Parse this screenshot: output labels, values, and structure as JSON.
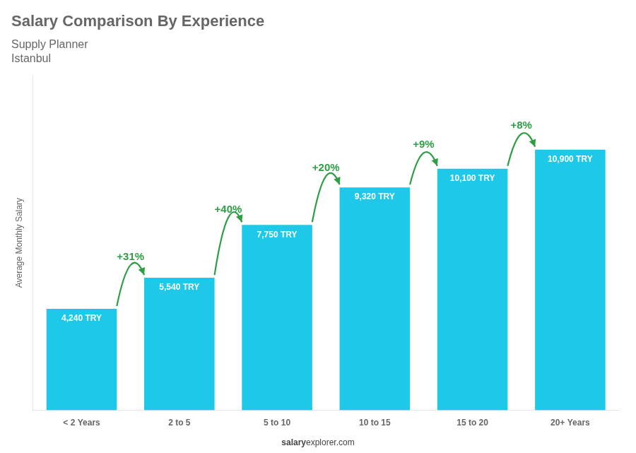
{
  "chart_data": {
    "type": "bar",
    "title": "Salary Comparison By Experience",
    "subtitle": [
      "Supply Planner",
      "Istanbul"
    ],
    "categories": [
      "< 2 Years",
      "2 to 5",
      "5 to 10",
      "10 to 15",
      "15 to 20",
      "20+ Years"
    ],
    "values": [
      4240,
      5540,
      7750,
      9320,
      10100,
      10900
    ],
    "value_labels": [
      "4,240 TRY",
      "5,540 TRY",
      "7,750 TRY",
      "9,320 TRY",
      "10,100 TRY",
      "10,900 TRY"
    ],
    "data_labels": true,
    "annotations": [
      "+31%",
      "+40%",
      "+20%",
      "+9%",
      "+8%"
    ],
    "color": "#1DC8E8",
    "ylabel": "Average Monthly Salary",
    "ylim": [
      0,
      14000
    ],
    "tick_labels": "x",
    "grid": false,
    "footer": [
      "salary",
      "explorer.com"
    ]
  }
}
